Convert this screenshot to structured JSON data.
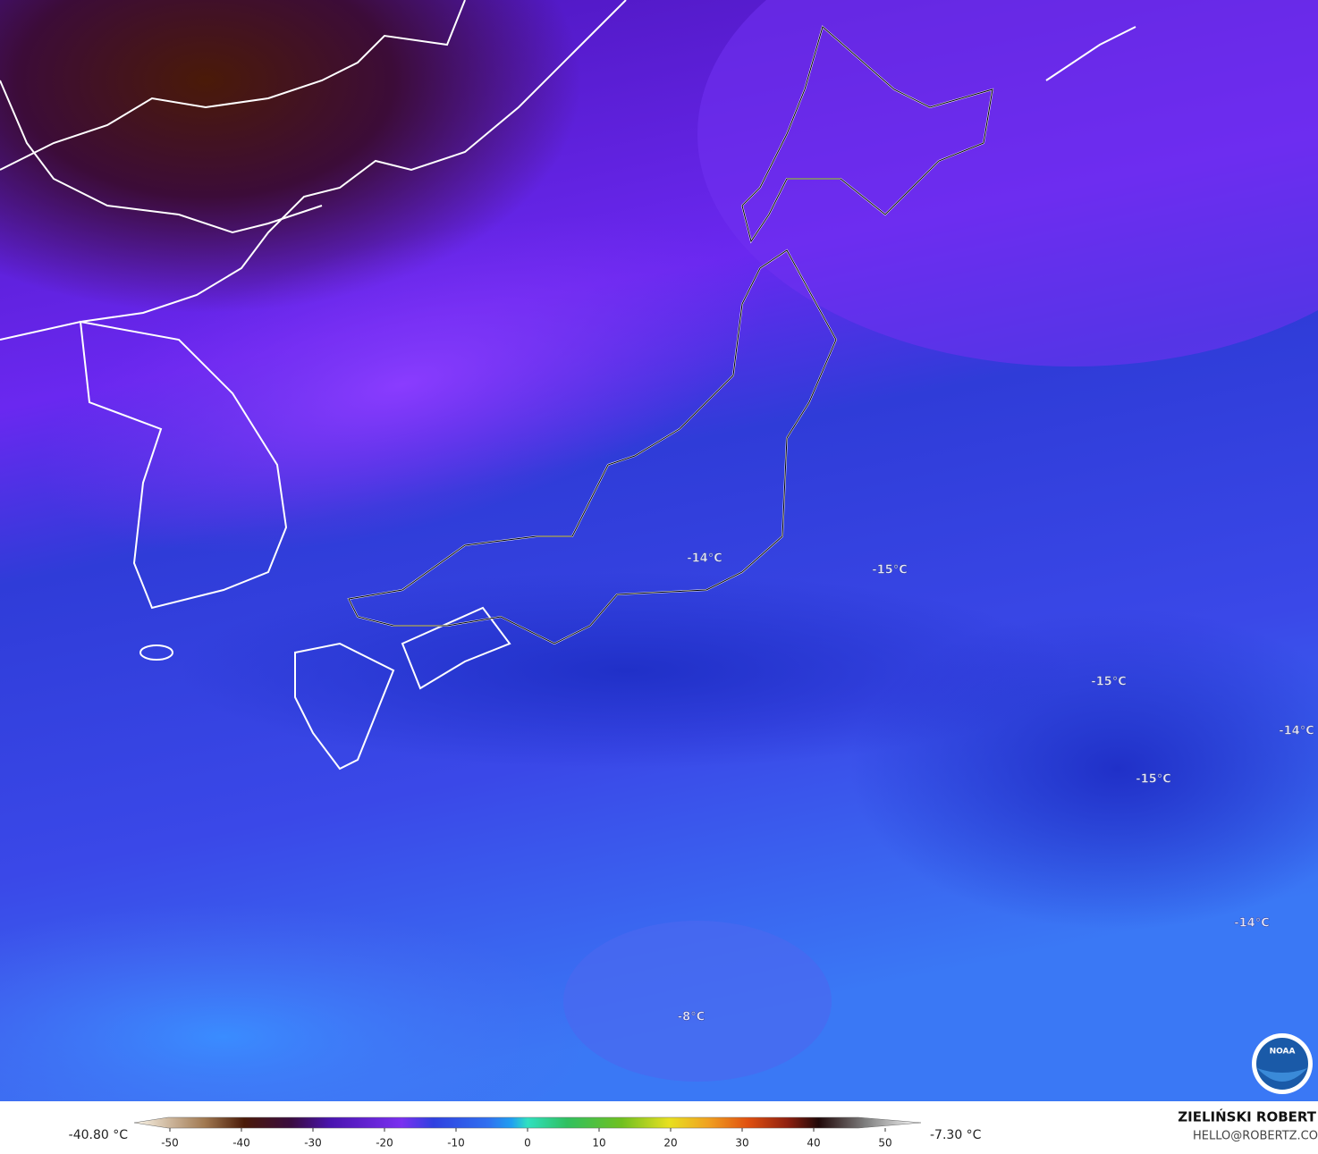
{
  "map": {
    "labels": [
      "-14°C",
      "-15°C",
      "-15°C",
      "-14°C",
      "-15°C",
      "-14°C",
      "-8°C"
    ],
    "colorbar": {
      "lim": [
        -55,
        55
      ],
      "ticks": [
        -50,
        -40,
        -30,
        -20,
        -10,
        0,
        10,
        20,
        30,
        40,
        50
      ]
    },
    "min_label": "-40.80 °C",
    "max_label": "-7.30 °C",
    "credit": {
      "name": "ZIELIŃSKI ROBERT",
      "contact": "HELLO@ROBERTZ.CO"
    },
    "logo": "NOAA"
  }
}
